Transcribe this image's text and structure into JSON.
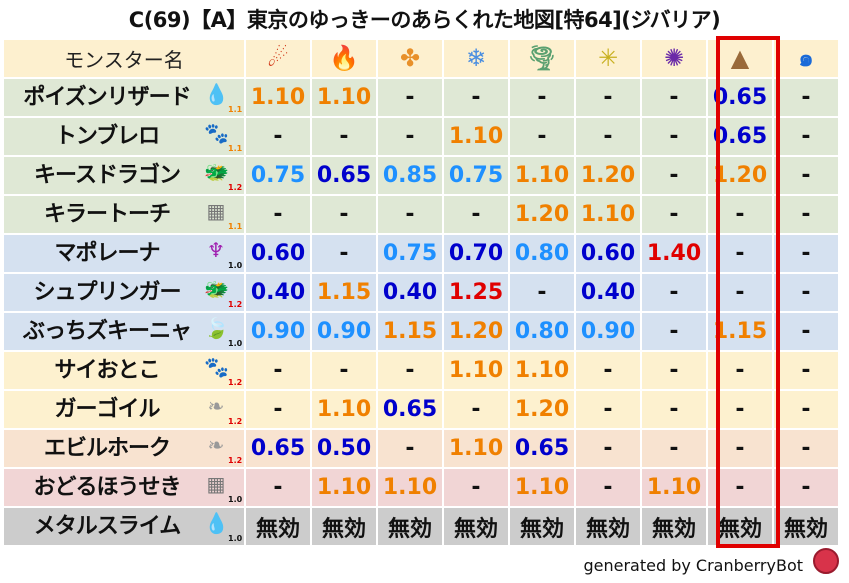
{
  "title": "C(69)【A】東京のゆっきーのあらくれた地図[特64](ジバリア)",
  "header": {
    "name_label": "モンスター名",
    "columns": [
      {
        "icon": "fire-icon",
        "glyph": "☄",
        "color": "#d23a1a"
      },
      {
        "icon": "flame-icon",
        "glyph": "🔥",
        "color": "#e8501a"
      },
      {
        "icon": "explosion-icon",
        "glyph": "✤",
        "color": "#e8902a"
      },
      {
        "icon": "ice-icon",
        "glyph": "❄",
        "color": "#4a8ee0"
      },
      {
        "icon": "wind-icon",
        "glyph": "🌪",
        "color": "#5aa070"
      },
      {
        "icon": "lightning-icon",
        "glyph": "✳",
        "color": "#c8b020"
      },
      {
        "icon": "darkness-icon",
        "glyph": "✺",
        "color": "#6a2aa8"
      },
      {
        "icon": "earth-icon",
        "glyph": "▲",
        "color": "#9a6a3a"
      },
      {
        "icon": "water-wave-icon",
        "glyph": "๑",
        "color": "#1a6ad8"
      }
    ],
    "highlighted_column": 7
  },
  "rows": [
    {
      "name": "ポイズンリザード",
      "type_icon": "water-drop-icon",
      "glyph": "💧",
      "icolor": "#3a8ad8",
      "level": "1.1",
      "lcolor": "#f08000",
      "band": "g",
      "cells": [
        [
          "1.10",
          "o"
        ],
        [
          "1.10",
          "o"
        ],
        [
          "-",
          "k"
        ],
        [
          "-",
          "k"
        ],
        [
          "-",
          "k"
        ],
        [
          "-",
          "k"
        ],
        [
          "-",
          "k"
        ],
        [
          "0.65",
          "b"
        ],
        [
          "-",
          "k"
        ]
      ]
    },
    {
      "name": "トンブレロ",
      "type_icon": "paw-icon",
      "glyph": "🐾",
      "icolor": "#e89020",
      "level": "1.1",
      "lcolor": "#f08000",
      "band": "g",
      "cells": [
        [
          "-",
          "k"
        ],
        [
          "-",
          "k"
        ],
        [
          "-",
          "k"
        ],
        [
          "1.10",
          "o"
        ],
        [
          "-",
          "k"
        ],
        [
          "-",
          "k"
        ],
        [
          "-",
          "k"
        ],
        [
          "0.65",
          "b"
        ],
        [
          "-",
          "k"
        ]
      ]
    },
    {
      "name": "キースドラゴン",
      "type_icon": "dragon-icon",
      "glyph": "🐲",
      "icolor": "#c02020",
      "level": "1.2",
      "lcolor": "#e00000",
      "band": "g",
      "cells": [
        [
          "0.75",
          "lb"
        ],
        [
          "0.65",
          "b"
        ],
        [
          "0.85",
          "lb"
        ],
        [
          "0.75",
          "lb"
        ],
        [
          "1.10",
          "o"
        ],
        [
          "1.20",
          "o"
        ],
        [
          "-",
          "k"
        ],
        [
          "1.20",
          "o"
        ],
        [
          "-",
          "k"
        ]
      ]
    },
    {
      "name": "キラートーチ",
      "type_icon": "brick-icon",
      "glyph": "▦",
      "icolor": "#777",
      "level": "1.1",
      "lcolor": "#f08000",
      "band": "g",
      "cells": [
        [
          "-",
          "k"
        ],
        [
          "-",
          "k"
        ],
        [
          "-",
          "k"
        ],
        [
          "-",
          "k"
        ],
        [
          "1.20",
          "o"
        ],
        [
          "1.10",
          "o"
        ],
        [
          "-",
          "k"
        ],
        [
          "-",
          "k"
        ],
        [
          "-",
          "k"
        ]
      ]
    },
    {
      "name": "マポレーナ",
      "type_icon": "demon-icon",
      "glyph": "♆",
      "icolor": "#a020b0",
      "level": "1.0",
      "lcolor": "#111",
      "band": "bl",
      "cells": [
        [
          "0.60",
          "b"
        ],
        [
          "-",
          "k"
        ],
        [
          "0.75",
          "lb"
        ],
        [
          "0.70",
          "b"
        ],
        [
          "0.80",
          "lb"
        ],
        [
          "0.60",
          "b"
        ],
        [
          "1.40",
          "r"
        ],
        [
          "-",
          "k"
        ],
        [
          "-",
          "k"
        ]
      ]
    },
    {
      "name": "シュプリンガー",
      "type_icon": "dragon-icon",
      "glyph": "🐲",
      "icolor": "#c02020",
      "level": "1.2",
      "lcolor": "#e00000",
      "band": "bl",
      "cells": [
        [
          "0.40",
          "b"
        ],
        [
          "1.15",
          "o"
        ],
        [
          "0.40",
          "b"
        ],
        [
          "1.25",
          "r"
        ],
        [
          "-",
          "k"
        ],
        [
          "0.40",
          "b"
        ],
        [
          "-",
          "k"
        ],
        [
          "-",
          "k"
        ],
        [
          "-",
          "k"
        ]
      ]
    },
    {
      "name": "ぶっちズキーニャ",
      "type_icon": "leaf-icon",
      "glyph": "🍃",
      "icolor": "#4ab040",
      "level": "1.0",
      "lcolor": "#111",
      "band": "bl",
      "cells": [
        [
          "0.90",
          "lb"
        ],
        [
          "0.90",
          "lb"
        ],
        [
          "1.15",
          "o"
        ],
        [
          "1.20",
          "o"
        ],
        [
          "0.80",
          "lb"
        ],
        [
          "0.90",
          "lb"
        ],
        [
          "-",
          "k"
        ],
        [
          "1.15",
          "o"
        ],
        [
          "-",
          "k"
        ]
      ]
    },
    {
      "name": "サイおとこ",
      "type_icon": "paw-icon",
      "glyph": "🐾",
      "icolor": "#e89020",
      "level": "1.2",
      "lcolor": "#e00000",
      "band": "y",
      "cells": [
        [
          "-",
          "k"
        ],
        [
          "-",
          "k"
        ],
        [
          "-",
          "k"
        ],
        [
          "1.10",
          "o"
        ],
        [
          "1.10",
          "o"
        ],
        [
          "-",
          "k"
        ],
        [
          "-",
          "k"
        ],
        [
          "-",
          "k"
        ],
        [
          "-",
          "k"
        ]
      ]
    },
    {
      "name": "ガーゴイル",
      "type_icon": "wing-icon",
      "glyph": "❧",
      "icolor": "#999",
      "level": "1.2",
      "lcolor": "#e00000",
      "band": "y",
      "cells": [
        [
          "-",
          "k"
        ],
        [
          "1.10",
          "o"
        ],
        [
          "0.65",
          "b"
        ],
        [
          "-",
          "k"
        ],
        [
          "1.20",
          "o"
        ],
        [
          "-",
          "k"
        ],
        [
          "-",
          "k"
        ],
        [
          "-",
          "k"
        ],
        [
          "-",
          "k"
        ]
      ]
    },
    {
      "name": "エビルホーク",
      "type_icon": "wing-icon",
      "glyph": "❧",
      "icolor": "#999",
      "level": "1.2",
      "lcolor": "#e00000",
      "band": "p",
      "cells": [
        [
          "0.65",
          "b"
        ],
        [
          "0.50",
          "b"
        ],
        [
          "-",
          "k"
        ],
        [
          "1.10",
          "o"
        ],
        [
          "0.65",
          "b"
        ],
        [
          "-",
          "k"
        ],
        [
          "-",
          "k"
        ],
        [
          "-",
          "k"
        ],
        [
          "-",
          "k"
        ]
      ]
    },
    {
      "name": "おどるほうせき",
      "type_icon": "brick-icon",
      "glyph": "▦",
      "icolor": "#777",
      "level": "1.0",
      "lcolor": "#111",
      "band": "pk",
      "cells": [
        [
          "-",
          "k"
        ],
        [
          "1.10",
          "o"
        ],
        [
          "1.10",
          "o"
        ],
        [
          "-",
          "k"
        ],
        [
          "1.10",
          "o"
        ],
        [
          "-",
          "k"
        ],
        [
          "1.10",
          "o"
        ],
        [
          "-",
          "k"
        ],
        [
          "-",
          "k"
        ]
      ]
    },
    {
      "name": "メタルスライム",
      "type_icon": "slime-icon",
      "glyph": "💧",
      "icolor": "#2a7ad0",
      "level": "1.0",
      "lcolor": "#111",
      "band": "gr",
      "cells": [
        [
          "無効",
          "k"
        ],
        [
          "無効",
          "k"
        ],
        [
          "無効",
          "k"
        ],
        [
          "無効",
          "k"
        ],
        [
          "無効",
          "k"
        ],
        [
          "無効",
          "k"
        ],
        [
          "無効",
          "k"
        ],
        [
          "無効",
          "k"
        ],
        [
          "無効",
          "k"
        ]
      ]
    }
  ],
  "footer": {
    "text": "generated by CranberryBot",
    "logo": "cranberry-bot-logo"
  }
}
